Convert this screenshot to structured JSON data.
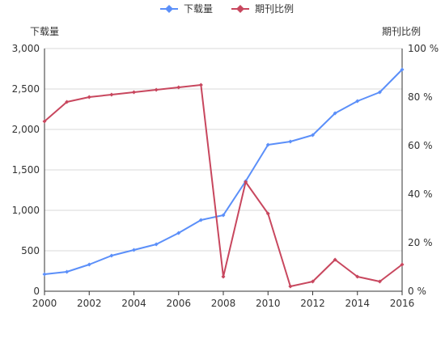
{
  "chart_data": {
    "type": "line",
    "title": "",
    "x": [
      2000,
      2001,
      2002,
      2003,
      2004,
      2005,
      2006,
      2007,
      2008,
      2009,
      2010,
      2011,
      2012,
      2013,
      2014,
      2015,
      2016
    ],
    "x_ticks": [
      "2000",
      "2002",
      "2004",
      "2006",
      "2008",
      "2010",
      "2012",
      "2014",
      "2016"
    ],
    "legend": {
      "position": "top-center"
    },
    "grid": true,
    "y_left": {
      "label": "下载量",
      "ylim": [
        0,
        3000
      ],
      "ticks": [
        "0",
        "500",
        "1,000",
        "1,500",
        "2,000",
        "2,500",
        "3,000"
      ]
    },
    "y_right": {
      "label": "期刊比例",
      "ylim": [
        0,
        100
      ],
      "ticks": [
        "0 %",
        "20 %",
        "40 %",
        "60 %",
        "80 %",
        "100 %"
      ]
    },
    "series": [
      {
        "name": "下载量",
        "axis": "left",
        "color": "#5B8FF9",
        "marker": "diamond",
        "values": [
          210,
          240,
          330,
          440,
          510,
          580,
          720,
          880,
          940,
          1360,
          1810,
          1850,
          1930,
          2200,
          2350,
          2460,
          2740
        ]
      },
      {
        "name": "期刊比例",
        "axis": "right",
        "color": "#C8475E",
        "marker": "diamond",
        "values": [
          70,
          78,
          80,
          81,
          82,
          83,
          84,
          85,
          6,
          45,
          32,
          2,
          4,
          13,
          6,
          4,
          11
        ]
      }
    ]
  }
}
